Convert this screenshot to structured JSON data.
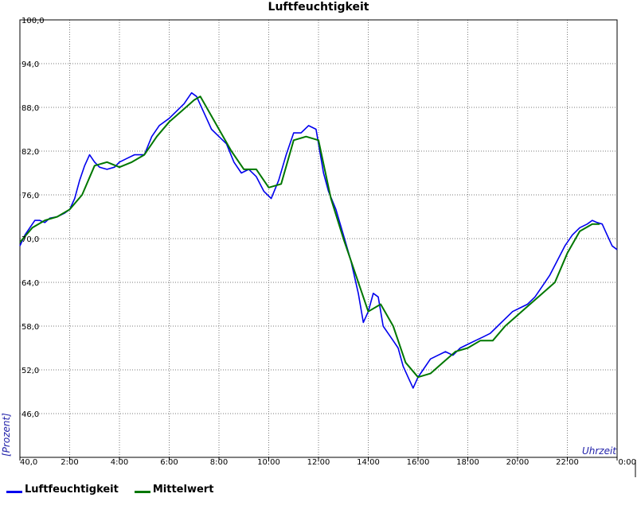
{
  "chart_data": {
    "type": "line",
    "title": "Luftfeuchtigkeit",
    "xlabel": "Uhrzeit",
    "ylabel": "[Prozent]",
    "xlim": [
      0,
      24
    ],
    "ylim": [
      40,
      100
    ],
    "x_tick_labels": [
      "40,0",
      "2:00",
      "4:00",
      "6:00",
      "8:00",
      "10:00",
      "12:00",
      "14:00",
      "16:00",
      "18:00",
      "20:00",
      "22:00",
      "0:00"
    ],
    "y_tick_labels": [
      "46,0",
      "52,0",
      "58,0",
      "64,0",
      "70,0",
      "76,0",
      "82,0",
      "88,0",
      "94,0",
      "100,0"
    ],
    "y_tick_values": [
      46,
      52,
      58,
      64,
      70,
      76,
      82,
      88,
      94,
      100
    ],
    "grid": true,
    "legend_position": "bottom-left",
    "series": [
      {
        "name": "Luftfeuchtigkeit",
        "color": "#0000ee",
        "x": [
          0.0,
          0.2,
          0.4,
          0.6,
          0.8,
          1.0,
          1.2,
          1.5,
          1.8,
          2.0,
          2.2,
          2.4,
          2.6,
          2.8,
          3.0,
          3.2,
          3.5,
          3.8,
          4.0,
          4.3,
          4.6,
          5.0,
          5.3,
          5.6,
          6.0,
          6.3,
          6.6,
          6.9,
          7.1,
          7.3,
          7.5,
          7.7,
          8.0,
          8.3,
          8.6,
          8.9,
          9.2,
          9.5,
          9.8,
          10.1,
          10.4,
          10.7,
          11.0,
          11.3,
          11.6,
          11.9,
          12.2,
          12.4,
          12.7,
          13.0,
          13.3,
          13.6,
          13.8,
          14.0,
          14.2,
          14.4,
          14.6,
          14.8,
          15.0,
          15.2,
          15.4,
          15.6,
          15.8,
          16.0,
          16.2,
          16.5,
          16.8,
          17.1,
          17.4,
          17.7,
          18.0,
          18.3,
          18.6,
          18.9,
          19.2,
          19.5,
          19.8,
          20.1,
          20.4,
          20.7,
          21.0,
          21.3,
          21.6,
          21.9,
          22.2,
          22.5,
          22.8,
          23.0,
          23.2,
          23.4,
          23.6,
          23.8,
          24.0
        ],
        "values": [
          69.0,
          70.5,
          71.5,
          72.5,
          72.5,
          72.2,
          72.8,
          73.0,
          73.5,
          74.0,
          75.5,
          78.0,
          80.0,
          81.5,
          80.5,
          79.8,
          79.5,
          79.8,
          80.5,
          81.0,
          81.5,
          81.5,
          84.0,
          85.5,
          86.5,
          87.5,
          88.5,
          90.0,
          89.5,
          88.0,
          86.5,
          85.0,
          84.0,
          83.0,
          80.5,
          79.0,
          79.5,
          78.5,
          76.5,
          75.5,
          78.0,
          81.5,
          84.5,
          84.5,
          85.5,
          85.0,
          79.0,
          76.5,
          74.0,
          70.5,
          67.0,
          62.5,
          58.5,
          60.0,
          62.5,
          62.0,
          58.0,
          57.0,
          56.0,
          55.0,
          52.5,
          51.0,
          49.5,
          51.0,
          52.0,
          53.5,
          54.0,
          54.5,
          54.0,
          55.0,
          55.5,
          56.0,
          56.5,
          57.0,
          58.0,
          59.0,
          60.0,
          60.5,
          61.0,
          62.0,
          63.5,
          65.0,
          67.0,
          69.0,
          70.5,
          71.5,
          72.0,
          72.5,
          72.2,
          72.0,
          70.5,
          69.0,
          68.5
        ]
      },
      {
        "name": "Mittelwert",
        "color": "#007700",
        "x": [
          0.0,
          0.5,
          1.0,
          1.5,
          2.0,
          2.5,
          3.0,
          3.5,
          4.0,
          4.5,
          5.0,
          5.5,
          6.0,
          6.5,
          7.0,
          7.25,
          7.5,
          8.0,
          8.5,
          9.0,
          9.5,
          10.0,
          10.5,
          11.0,
          11.5,
          12.0,
          12.5,
          13.0,
          13.5,
          14.0,
          14.5,
          15.0,
          15.5,
          16.0,
          16.5,
          17.0,
          17.5,
          18.0,
          18.5,
          19.0,
          19.5,
          20.0,
          20.5,
          21.0,
          21.5,
          22.0,
          22.5,
          23.0,
          23.3
        ],
        "values": [
          69.5,
          71.5,
          72.5,
          73.0,
          74.0,
          76.0,
          80.0,
          80.5,
          79.8,
          80.5,
          81.5,
          84.0,
          86.0,
          87.5,
          89.0,
          89.5,
          88.0,
          85.0,
          82.0,
          79.5,
          79.5,
          77.0,
          77.5,
          83.5,
          84.0,
          83.5,
          75.5,
          70.0,
          65.0,
          60.0,
          61.0,
          58.0,
          53.0,
          51.0,
          51.5,
          53.0,
          54.5,
          55.0,
          56.0,
          56.0,
          58.0,
          59.5,
          61.0,
          62.5,
          64.0,
          68.0,
          71.0,
          72.0,
          72.0
        ]
      }
    ]
  }
}
